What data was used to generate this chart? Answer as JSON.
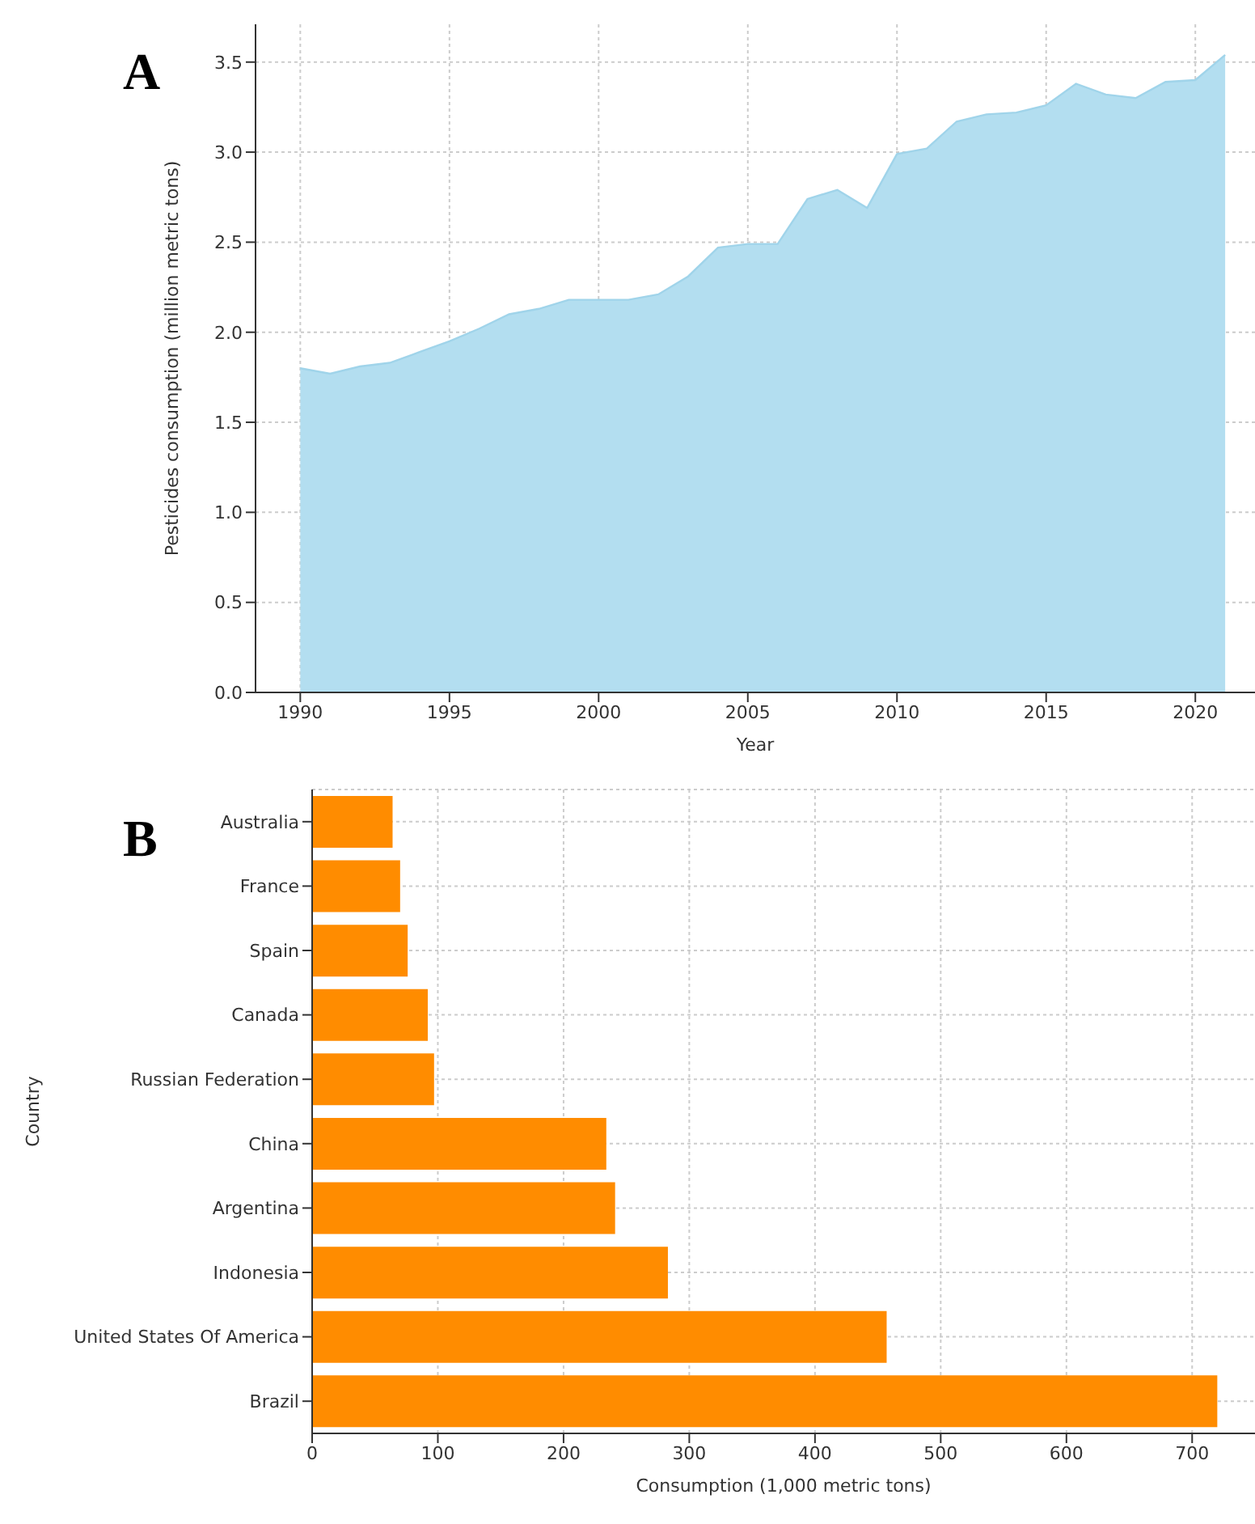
{
  "chart_data": [
    {
      "type": "area",
      "annotations": [
        "A"
      ],
      "xlabel": "Year",
      "ylabel": "Pesticides consumption (million metric tons)",
      "x": [
        1990,
        1991,
        1992,
        1993,
        1994,
        1995,
        1996,
        1997,
        1998,
        1999,
        2000,
        2001,
        2002,
        2003,
        2004,
        2005,
        2006,
        2007,
        2008,
        2009,
        2010,
        2011,
        2012,
        2013,
        2014,
        2015,
        2016,
        2017,
        2018,
        2019,
        2020,
        2021
      ],
      "values": [
        1.8,
        1.77,
        1.81,
        1.83,
        1.89,
        1.95,
        2.02,
        2.1,
        2.13,
        2.18,
        2.18,
        2.18,
        2.21,
        2.31,
        2.47,
        2.49,
        2.49,
        2.74,
        2.79,
        2.69,
        2.99,
        3.02,
        3.17,
        3.21,
        3.22,
        3.26,
        3.38,
        3.32,
        3.3,
        3.39,
        3.4,
        3.54
      ],
      "color": "#b3def0",
      "xlim": [
        1988.5,
        2022
      ],
      "xticks": [
        1990,
        1995,
        2000,
        2005,
        2010,
        2015,
        2020
      ],
      "ylim": [
        0,
        3.71
      ],
      "yticks": [
        {
          "value": 0,
          "label": "0.0"
        },
        0.5,
        {
          "value": 1,
          "label": "1.0"
        },
        1.5,
        {
          "value": 2,
          "label": "2.0"
        },
        2.5,
        {
          "value": 3,
          "label": "3.0"
        },
        3.5
      ],
      "grid": true
    },
    {
      "type": "bar",
      "orientation": "horizontal",
      "annotations": [
        "B"
      ],
      "xlabel": "Consumption (1,000 metric tons)",
      "ylabel": "Country",
      "categories": [
        "Australia",
        "France",
        "Spain",
        "Canada",
        "Russian Federation",
        "China",
        "Argentina",
        "Indonesia",
        "United States Of America",
        "Brazil"
      ],
      "values": [
        64,
        70,
        76,
        92,
        97,
        234,
        241,
        283,
        457,
        720
      ],
      "color": "#ff8c00",
      "xlim": [
        0,
        750
      ],
      "xticks": [
        0,
        100,
        200,
        300,
        400,
        500,
        600,
        700
      ],
      "grid": true
    }
  ]
}
